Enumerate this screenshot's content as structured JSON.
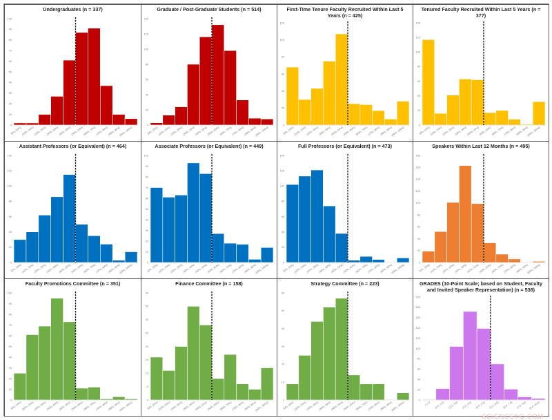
{
  "watermark": "SCIENCEAG.COM",
  "chart_data": [
    {
      "type": "bar",
      "title": "Undergraduates (n = 337)",
      "color": "#c00000",
      "categories": "pct",
      "values": [
        2,
        2,
        10,
        27,
        61,
        87,
        91,
        37,
        10,
        6
      ],
      "ylim": [
        0,
        100
      ],
      "ystep": 10,
      "reference_line": "50%"
    },
    {
      "type": "bar",
      "title": "Graduate / Post-Graduate Students (n = 514)",
      "color": "#c00000",
      "categories": "pct",
      "values": [
        3,
        13,
        24,
        80,
        116,
        132,
        98,
        33,
        9,
        8
      ],
      "ylim": [
        0,
        140
      ],
      "ystep": 20,
      "reference_line": "50%"
    },
    {
      "type": "bar",
      "title": "First-Time Tenure Faculty Recruited Within Last 5 Years (n = 425)",
      "color": "#ffc000",
      "categories": "pct",
      "values": [
        68,
        30,
        43,
        75,
        107,
        25,
        24,
        17,
        7,
        28
      ],
      "ylim": [
        0,
        120
      ],
      "ystep": 20,
      "reference_line": "50%"
    },
    {
      "type": "bar",
      "title": "Tenured Faculty Recruited Within Last 5 Years (n = 377)",
      "color": "#ffc000",
      "categories": "pct",
      "values": [
        117,
        16,
        41,
        63,
        62,
        17,
        20,
        8,
        1,
        32
      ],
      "ylim": [
        0,
        140
      ],
      "ystep": 20,
      "reference_line": "50%"
    },
    {
      "type": "bar",
      "title": "Assistant Professors (or Equivalent) (n = 464)",
      "color": "#0070c0",
      "categories": "pct",
      "values": [
        30,
        40,
        62,
        86,
        115,
        50,
        35,
        24,
        3,
        14
      ],
      "ylim": [
        0,
        140
      ],
      "ystep": 20,
      "reference_line": "50%"
    },
    {
      "type": "bar",
      "title": "Associate Professors (or Equivalent) (n = 449)",
      "color": "#0070c0",
      "categories": "pct",
      "values": [
        70,
        61,
        63,
        93,
        83,
        27,
        18,
        17,
        3,
        14
      ],
      "ylim": [
        0,
        100
      ],
      "ystep": 10,
      "reference_line": "50%"
    },
    {
      "type": "bar",
      "title": "Full Professors (or Equivalent) (n = 473)",
      "color": "#0070c0",
      "categories": "pct",
      "values": [
        102,
        113,
        121,
        74,
        38,
        3,
        8,
        4,
        0,
        6
      ],
      "ylim": [
        0,
        140
      ],
      "ystep": 20,
      "reference_line": "50%"
    },
    {
      "type": "bar",
      "title": "Speakers Within Last 12 Months (n = 495)",
      "color": "#ed7d31",
      "categories": "pct",
      "values": [
        19,
        52,
        101,
        163,
        99,
        33,
        14,
        6,
        0,
        2
      ],
      "ylim": [
        0,
        180
      ],
      "ystep": 20,
      "reference_line": "50%"
    },
    {
      "type": "bar",
      "title": "Faculty Promotions Committee (n = 351)",
      "color": "#70ad47",
      "categories": "pct",
      "values": [
        25,
        61,
        69,
        95,
        73,
        11,
        12,
        1,
        3,
        1
      ],
      "ylim": [
        0,
        100
      ],
      "ystep": 10,
      "reference_line": "50%"
    },
    {
      "type": "bar",
      "title": "Finance Committee (n = 158)",
      "color": "#70ad47",
      "categories": "pct",
      "values": [
        16,
        11,
        20,
        35,
        28,
        8,
        17,
        6,
        4,
        12
      ],
      "ylim": [
        0,
        40
      ],
      "ystep": 5,
      "reference_line": "50%"
    },
    {
      "type": "bar",
      "title": "Strategy Committee (n = 223)",
      "color": "#70ad47",
      "categories": "pct",
      "values": [
        9,
        25,
        44,
        52,
        57,
        14,
        9,
        9,
        0,
        4
      ],
      "ylim": [
        0,
        60
      ],
      "ystep": 10,
      "reference_line": "50%"
    },
    {
      "type": "bar",
      "title": "GRADES (10-Point Scale; based on Student, Faculty and Invited Speaker Representation) (n = 538)",
      "color": "#cc77ee",
      "categories": [
        "≤ 1.0",
        "(1.0, 2.0]",
        "(2.0, 3.0]",
        "(3.0, 4.0]",
        "(4.0, 5.0]",
        "(5.0, 6.0]",
        "(6.0, 7.0]",
        "(7.0, 8.0]",
        "(8.0, 10.0]"
      ],
      "values": [
        1,
        22,
        104,
        172,
        139,
        70,
        21,
        6,
        3
      ],
      "ylim": [
        0,
        200
      ],
      "ystep": 20,
      "reference_line": "5.0"
    }
  ],
  "pct_categories": [
    "[0%, 10%]",
    "(10%, 20%]",
    "(20%, 30%]",
    "(30%, 40%]",
    "(40%, 50%]",
    "(50%, 60%]",
    "(60%, 70%]",
    "(70%, 80%]",
    "(80%, 90%]",
    "(90%, 100%]"
  ]
}
